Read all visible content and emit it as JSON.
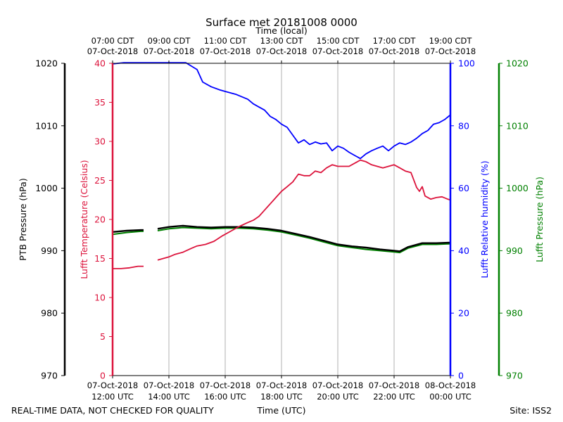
{
  "chart_data": {
    "type": "line",
    "title": "Surface met 20181008 0000",
    "top_xlabel": "Time (local)",
    "xlabel": "Time (UTC)",
    "footer_left": "REAL-TIME DATA, NOT CHECKED FOR QUALITY",
    "footer_right": "Site: ISS2",
    "x_range_hours": [
      12,
      24
    ],
    "bottom_ticks": [
      {
        "hour": 12,
        "date": "07-Oct-2018",
        "time": "12:00 UTC"
      },
      {
        "hour": 14,
        "date": "07-Oct-2018",
        "time": "14:00 UTC"
      },
      {
        "hour": 16,
        "date": "07-Oct-2018",
        "time": "16:00 UTC"
      },
      {
        "hour": 18,
        "date": "07-Oct-2018",
        "time": "18:00 UTC"
      },
      {
        "hour": 20,
        "date": "07-Oct-2018",
        "time": "20:00 UTC"
      },
      {
        "hour": 22,
        "date": "07-Oct-2018",
        "time": "22:00 UTC"
      },
      {
        "hour": 24,
        "date": "08-Oct-2018",
        "time": "00:00 UTC"
      }
    ],
    "top_ticks": [
      {
        "hour": 12,
        "time": "07:00 CDT",
        "date": "07-Oct-2018"
      },
      {
        "hour": 14,
        "time": "09:00 CDT",
        "date": "07-Oct-2018"
      },
      {
        "hour": 16,
        "time": "11:00 CDT",
        "date": "07-Oct-2018"
      },
      {
        "hour": 18,
        "time": "13:00 CDT",
        "date": "07-Oct-2018"
      },
      {
        "hour": 20,
        "time": "15:00 CDT",
        "date": "07-Oct-2018"
      },
      {
        "hour": 22,
        "time": "17:00 CDT",
        "date": "07-Oct-2018"
      },
      {
        "hour": 24,
        "time": "19:00 CDT",
        "date": "07-Oct-2018"
      }
    ],
    "axes": {
      "ptb": {
        "label": "PTB Pressure (hPa)",
        "range": [
          970,
          1020
        ],
        "ticks": [
          970,
          980,
          990,
          1000,
          1010,
          1020
        ],
        "color": "#000000"
      },
      "temp": {
        "label": "Lufft Temperature (Celsius)",
        "range": [
          0,
          40
        ],
        "ticks": [
          0,
          5,
          10,
          15,
          20,
          25,
          30,
          35,
          40
        ],
        "color": "#dc143c"
      },
      "rh": {
        "label": "Lufft Relative humidity (%)",
        "range": [
          0,
          100
        ],
        "ticks": [
          0,
          20,
          40,
          60,
          80,
          100
        ],
        "color": "#0000ff"
      },
      "lufft_p": {
        "label": "Lufft Pressure (hPa)",
        "range": [
          970,
          1020
        ],
        "ticks": [
          970,
          980,
          990,
          1000,
          1010,
          1020
        ],
        "color": "#008000"
      }
    },
    "series": [
      {
        "name": "Lufft Temperature",
        "axis": "temp",
        "color": "#dc143c",
        "segments": [
          [
            [
              12.0,
              13.7
            ],
            [
              12.3,
              13.7
            ],
            [
              12.6,
              13.8
            ],
            [
              12.9,
              14.0
            ],
            [
              13.1,
              14.0
            ]
          ],
          [
            [
              13.6,
              14.8
            ],
            [
              13.8,
              15.0
            ],
            [
              14.0,
              15.2
            ],
            [
              14.2,
              15.5
            ],
            [
              14.5,
              15.8
            ],
            [
              14.8,
              16.3
            ],
            [
              15.0,
              16.6
            ],
            [
              15.3,
              16.8
            ],
            [
              15.6,
              17.2
            ],
            [
              15.9,
              17.9
            ],
            [
              16.2,
              18.5
            ],
            [
              16.5,
              19.1
            ],
            [
              16.8,
              19.6
            ],
            [
              17.0,
              19.9
            ],
            [
              17.2,
              20.4
            ],
            [
              17.4,
              21.2
            ],
            [
              17.6,
              22.0
            ],
            [
              17.8,
              22.8
            ],
            [
              18.0,
              23.6
            ],
            [
              18.2,
              24.2
            ],
            [
              18.4,
              24.8
            ],
            [
              18.6,
              25.8
            ],
            [
              18.8,
              25.6
            ],
            [
              19.0,
              25.6
            ],
            [
              19.2,
              26.2
            ],
            [
              19.4,
              26.0
            ],
            [
              19.6,
              26.6
            ],
            [
              19.8,
              27.0
            ],
            [
              20.0,
              26.8
            ],
            [
              20.2,
              26.8
            ],
            [
              20.4,
              26.8
            ],
            [
              20.6,
              27.2
            ],
            [
              20.8,
              27.6
            ],
            [
              21.0,
              27.4
            ],
            [
              21.2,
              27.0
            ],
            [
              21.4,
              26.8
            ],
            [
              21.6,
              26.6
            ],
            [
              21.8,
              26.8
            ],
            [
              22.0,
              27.0
            ],
            [
              22.2,
              26.6
            ],
            [
              22.4,
              26.2
            ],
            [
              22.6,
              26.0
            ],
            [
              22.8,
              24.1
            ],
            [
              22.9,
              23.6
            ],
            [
              23.0,
              24.2
            ],
            [
              23.1,
              23.0
            ],
            [
              23.3,
              22.6
            ],
            [
              23.5,
              22.8
            ],
            [
              23.7,
              22.9
            ],
            [
              23.9,
              22.6
            ],
            [
              24.0,
              22.5
            ]
          ]
        ]
      },
      {
        "name": "Lufft Relative humidity",
        "axis": "rh",
        "color": "#0000ff",
        "segments": [
          [
            [
              12.0,
              99.8
            ],
            [
              12.4,
              100.2
            ],
            [
              14.6,
              100.2
            ],
            [
              15.0,
              98.0
            ],
            [
              15.2,
              94.0
            ],
            [
              15.5,
              92.5
            ],
            [
              15.8,
              91.5
            ],
            [
              16.0,
              91.0
            ],
            [
              16.4,
              90.0
            ],
            [
              16.8,
              88.5
            ],
            [
              17.0,
              87.0
            ],
            [
              17.2,
              86.0
            ],
            [
              17.4,
              85.0
            ],
            [
              17.6,
              83.0
            ],
            [
              17.8,
              82.0
            ],
            [
              18.0,
              80.5
            ],
            [
              18.2,
              79.5
            ],
            [
              18.4,
              77.0
            ],
            [
              18.6,
              74.5
            ],
            [
              18.8,
              75.5
            ],
            [
              19.0,
              74.0
            ],
            [
              19.2,
              74.8
            ],
            [
              19.4,
              74.2
            ],
            [
              19.6,
              74.5
            ],
            [
              19.8,
              72.0
            ],
            [
              20.0,
              73.5
            ],
            [
              20.2,
              72.8
            ],
            [
              20.4,
              71.5
            ],
            [
              20.6,
              70.5
            ],
            [
              20.8,
              69.5
            ],
            [
              21.0,
              71.0
            ],
            [
              21.2,
              72.0
            ],
            [
              21.4,
              72.8
            ],
            [
              21.6,
              73.5
            ],
            [
              21.8,
              72.0
            ],
            [
              22.0,
              73.5
            ],
            [
              22.2,
              74.5
            ],
            [
              22.4,
              74.0
            ],
            [
              22.6,
              74.8
            ],
            [
              22.8,
              76.0
            ],
            [
              23.0,
              77.5
            ],
            [
              23.2,
              78.5
            ],
            [
              23.4,
              80.5
            ],
            [
              23.6,
              81.0
            ],
            [
              23.8,
              82.0
            ],
            [
              24.0,
              83.5
            ]
          ]
        ]
      },
      {
        "name": "PTB Pressure",
        "axis": "ptb",
        "color": "#000000",
        "segments": [
          [
            [
              12.0,
              993.0
            ],
            [
              12.5,
              993.2
            ],
            [
              13.0,
              993.3
            ],
            [
              13.1,
              993.3
            ]
          ],
          [
            [
              13.6,
              993.5
            ],
            [
              14.0,
              993.8
            ],
            [
              14.5,
              994.0
            ],
            [
              15.0,
              993.8
            ],
            [
              15.5,
              993.7
            ],
            [
              16.0,
              993.8
            ],
            [
              16.5,
              993.8
            ],
            [
              17.0,
              993.7
            ],
            [
              17.5,
              993.5
            ],
            [
              18.0,
              993.2
            ],
            [
              18.5,
              992.7
            ],
            [
              19.0,
              992.2
            ],
            [
              19.5,
              991.6
            ],
            [
              20.0,
              991.0
            ],
            [
              20.5,
              990.7
            ],
            [
              21.0,
              990.5
            ],
            [
              21.5,
              990.2
            ],
            [
              22.0,
              990.0
            ],
            [
              22.2,
              989.9
            ],
            [
              22.5,
              990.6
            ],
            [
              23.0,
              991.2
            ],
            [
              23.5,
              991.2
            ],
            [
              24.0,
              991.3
            ]
          ]
        ]
      },
      {
        "name": "Lufft Pressure",
        "axis": "lufft_p",
        "color": "#008000",
        "segments": [
          [
            [
              12.0,
              992.6
            ],
            [
              12.5,
              992.9
            ],
            [
              13.0,
              993.1
            ],
            [
              13.1,
              993.1
            ]
          ],
          [
            [
              13.6,
              993.2
            ],
            [
              14.0,
              993.5
            ],
            [
              14.5,
              993.7
            ],
            [
              15.0,
              993.6
            ],
            [
              15.5,
              993.5
            ],
            [
              16.0,
              993.6
            ],
            [
              16.5,
              993.6
            ],
            [
              17.0,
              993.5
            ],
            [
              17.5,
              993.3
            ],
            [
              18.0,
              993.0
            ],
            [
              18.5,
              992.5
            ],
            [
              19.0,
              992.0
            ],
            [
              19.5,
              991.4
            ],
            [
              20.0,
              990.8
            ],
            [
              20.5,
              990.5
            ],
            [
              21.0,
              990.2
            ],
            [
              21.5,
              990.0
            ],
            [
              22.0,
              989.8
            ],
            [
              22.2,
              989.7
            ],
            [
              22.5,
              990.4
            ],
            [
              23.0,
              991.0
            ],
            [
              23.5,
              991.0
            ],
            [
              24.0,
              991.1
            ]
          ]
        ]
      }
    ]
  }
}
